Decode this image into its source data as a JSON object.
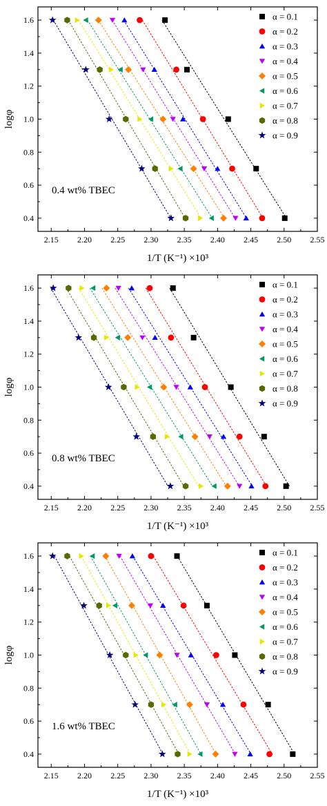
{
  "chart_data": [
    {
      "type": "scatter",
      "annotation": "0.4 wt% TBEC",
      "xlabel": "1/T (K⁻¹) ×10³",
      "ylabel": "logφ",
      "xlim": [
        2.13,
        2.55
      ],
      "ylim": [
        0.32,
        1.68
      ],
      "x_ticks": [
        "2.15",
        "2.20",
        "2.25",
        "2.30",
        "2.35",
        "2.40",
        "2.45",
        "2.50",
        "2.55"
      ],
      "y_ticks": [
        "0.4",
        "0.6",
        "0.8",
        "1.0",
        "1.2",
        "1.4",
        "1.6"
      ],
      "y": [
        1.6,
        1.3,
        1.0,
        0.7,
        0.4
      ],
      "series": [
        {
          "name": "α = 0.1",
          "marker": "square",
          "color": "#000000",
          "x": [
            2.321,
            2.354,
            2.416,
            2.458,
            2.501
          ]
        },
        {
          "name": "α = 0.2",
          "marker": "circle",
          "color": "#ff0000",
          "x": [
            2.283,
            2.338,
            2.378,
            2.422,
            2.467
          ]
        },
        {
          "name": "α = 0.3",
          "marker": "triangle-up",
          "color": "#0000ff",
          "x": [
            2.26,
            2.305,
            2.348,
            2.4,
            2.443
          ]
        },
        {
          "name": "α = 0.4",
          "marker": "triangle-down",
          "color": "#bf00ff",
          "x": [
            2.242,
            2.288,
            2.333,
            2.38,
            2.427
          ]
        },
        {
          "name": "α = 0.5",
          "marker": "diamond",
          "color": "#ff8000",
          "x": [
            2.221,
            2.266,
            2.318,
            2.364,
            2.409
          ]
        },
        {
          "name": "α = 0.6",
          "marker": "triangle-left",
          "color": "#009966",
          "x": [
            2.202,
            2.254,
            2.3,
            2.344,
            2.391
          ]
        },
        {
          "name": "α = 0.7",
          "marker": "triangle-right",
          "color": "#e6e600",
          "x": [
            2.189,
            2.24,
            2.283,
            2.33,
            2.374
          ]
        },
        {
          "name": "α = 0.8",
          "marker": "hexagon",
          "color": "#556b00",
          "x": [
            2.174,
            2.223,
            2.262,
            2.306,
            2.352
          ]
        },
        {
          "name": "α = 0.9",
          "marker": "star",
          "color": "#000080",
          "x": [
            2.152,
            2.202,
            2.237,
            2.286,
            2.33
          ]
        }
      ]
    },
    {
      "type": "scatter",
      "annotation": "0.8 wt% TBEC",
      "xlabel": "1/T (K⁻¹) ×10³",
      "ylabel": "logφ",
      "xlim": [
        2.13,
        2.55
      ],
      "ylim": [
        0.32,
        1.68
      ],
      "x_ticks": [
        "2.15",
        "2.20",
        "2.25",
        "2.30",
        "2.35",
        "2.40",
        "2.45",
        "2.50",
        "2.55"
      ],
      "y_ticks": [
        "0.4",
        "0.6",
        "0.8",
        "1.0",
        "1.2",
        "1.4",
        "1.6"
      ],
      "y": [
        1.6,
        1.3,
        1.0,
        0.7,
        0.4
      ],
      "series": [
        {
          "name": "α = 0.1",
          "marker": "square",
          "color": "#000000",
          "x": [
            2.333,
            2.364,
            2.42,
            2.47,
            2.503
          ]
        },
        {
          "name": "α = 0.2",
          "marker": "circle",
          "color": "#ff0000",
          "x": [
            2.298,
            2.33,
            2.381,
            2.433,
            2.472
          ]
        },
        {
          "name": "α = 0.3",
          "marker": "triangle-up",
          "color": "#0000ff",
          "x": [
            2.271,
            2.306,
            2.359,
            2.409,
            2.451
          ]
        },
        {
          "name": "α = 0.4",
          "marker": "triangle-down",
          "color": "#bf00ff",
          "x": [
            2.251,
            2.287,
            2.338,
            2.388,
            2.433
          ]
        },
        {
          "name": "α = 0.5",
          "marker": "diamond",
          "color": "#ff8000",
          "x": [
            2.233,
            2.265,
            2.319,
            2.366,
            2.415
          ]
        },
        {
          "name": "α = 0.6",
          "marker": "triangle-left",
          "color": "#009966",
          "x": [
            2.213,
            2.25,
            2.298,
            2.345,
            2.395
          ]
        },
        {
          "name": "α = 0.7",
          "marker": "triangle-right",
          "color": "#e6e600",
          "x": [
            2.196,
            2.233,
            2.279,
            2.324,
            2.375
          ]
        },
        {
          "name": "α = 0.8",
          "marker": "hexagon",
          "color": "#556b00",
          "x": [
            2.176,
            2.214,
            2.259,
            2.303,
            2.352
          ]
        },
        {
          "name": "α = 0.9",
          "marker": "star",
          "color": "#000080",
          "x": [
            2.153,
            2.191,
            2.236,
            2.278,
            2.329
          ]
        }
      ]
    },
    {
      "type": "scatter",
      "annotation": "1.6 wt% TBEC",
      "xlabel": "1/T (K⁻¹) ×10³",
      "ylabel": "logφ",
      "xlim": [
        2.13,
        2.55
      ],
      "ylim": [
        0.32,
        1.68
      ],
      "x_ticks": [
        "2.15",
        "2.20",
        "2.25",
        "2.30",
        "2.35",
        "2.40",
        "2.45",
        "2.50",
        "2.55"
      ],
      "y_ticks": [
        "0.4",
        "0.6",
        "0.8",
        "1.0",
        "1.2",
        "1.4",
        "1.6"
      ],
      "y": [
        1.6,
        1.3,
        1.0,
        0.7,
        0.4
      ],
      "series": [
        {
          "name": "α = 0.1",
          "marker": "square",
          "color": "#000000",
          "x": [
            2.339,
            2.384,
            2.426,
            2.476,
            2.513
          ]
        },
        {
          "name": "α = 0.2",
          "marker": "circle",
          "color": "#ff0000",
          "x": [
            2.3,
            2.349,
            2.398,
            2.439,
            2.478
          ]
        },
        {
          "name": "α = 0.3",
          "marker": "triangle-up",
          "color": "#0000ff",
          "x": [
            2.272,
            2.318,
            2.36,
            2.408,
            2.449
          ]
        },
        {
          "name": "α = 0.4",
          "marker": "triangle-down",
          "color": "#bf00ff",
          "x": [
            2.252,
            2.299,
            2.339,
            2.384,
            2.426
          ]
        },
        {
          "name": "α = 0.5",
          "marker": "diamond",
          "color": "#ff8000",
          "x": [
            2.232,
            2.271,
            2.313,
            2.358,
            2.397
          ]
        },
        {
          "name": "α = 0.6",
          "marker": "triangle-left",
          "color": "#009966",
          "x": [
            2.212,
            2.246,
            2.292,
            2.336,
            2.374
          ]
        },
        {
          "name": "α = 0.7",
          "marker": "triangle-right",
          "color": "#e6e600",
          "x": [
            2.195,
            2.236,
            2.277,
            2.319,
            2.358
          ]
        },
        {
          "name": "α = 0.8",
          "marker": "hexagon",
          "color": "#556b00",
          "x": [
            2.174,
            2.222,
            2.262,
            2.3,
            2.34
          ]
        },
        {
          "name": "α = 0.9",
          "marker": "star",
          "color": "#000080",
          "x": [
            2.152,
            2.199,
            2.238,
            2.276,
            2.317
          ]
        }
      ]
    }
  ]
}
